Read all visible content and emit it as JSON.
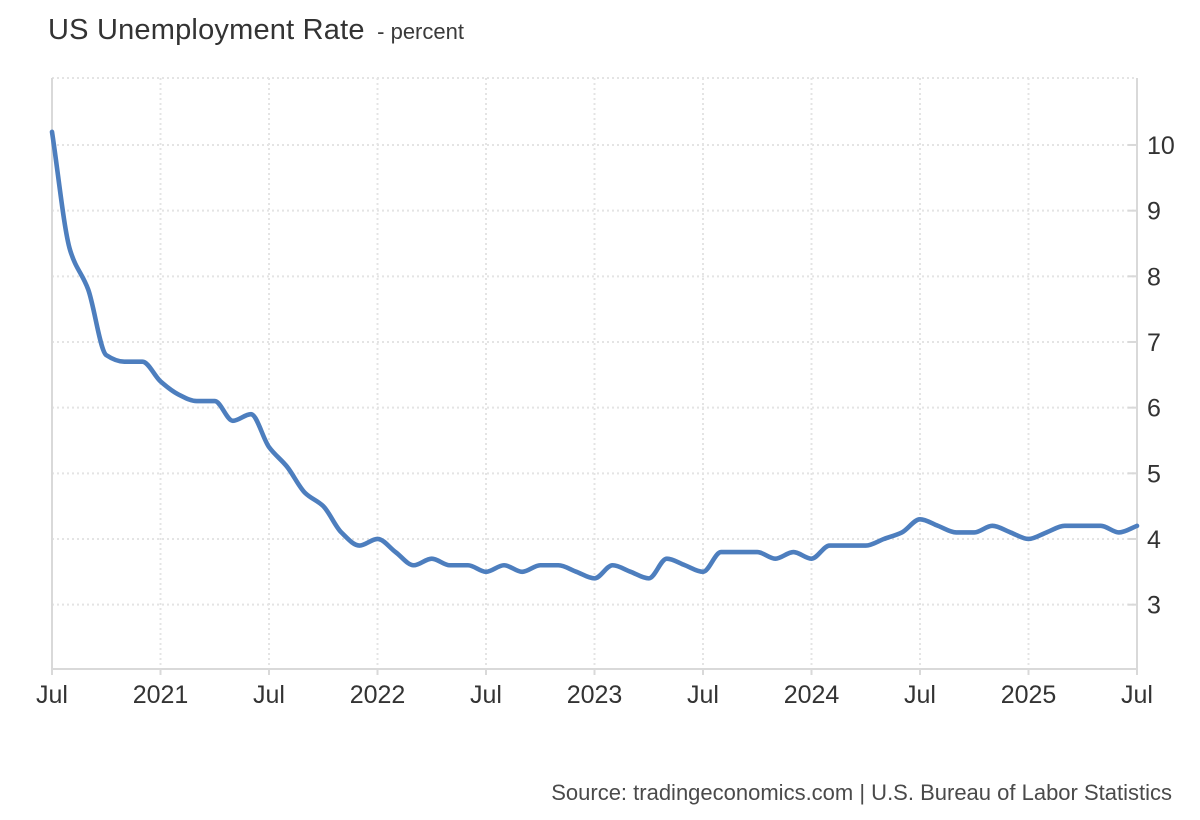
{
  "title": {
    "main": "US Unemployment Rate",
    "unit": "- percent"
  },
  "source_text": "Source: tradingeconomics.com | U.S. Bureau of Labor Statistics",
  "colors": {
    "line": "#4d7ebe",
    "grid": "#e4e4e4",
    "axis": "#d9d9d9",
    "tick_label": "#333333",
    "title_text": "#333333",
    "source_text": "#4a4a4a",
    "background": "#ffffff"
  },
  "chart_data": {
    "type": "line",
    "style": "smooth-spline",
    "title": "US Unemployment Rate",
    "ylabel": "percent",
    "xlabel": "",
    "grid": "dotted",
    "legend": "none",
    "y_axis_side": "right",
    "y_ticks": [
      3,
      4,
      5,
      6,
      7,
      8,
      9,
      10
    ],
    "ylim": [
      2.02,
      11.02
    ],
    "x_tick_month_indices": [
      0,
      6,
      12,
      18,
      24,
      30,
      36,
      42,
      48,
      54,
      60
    ],
    "x_tick_labels": [
      "Jul",
      "2021",
      "Jul",
      "2022",
      "Jul",
      "2023",
      "Jul",
      "2024",
      "Jul",
      "2025",
      "Jul"
    ],
    "months": [
      "2020-07",
      "2020-08",
      "2020-09",
      "2020-10",
      "2020-11",
      "2020-12",
      "2021-01",
      "2021-02",
      "2021-03",
      "2021-04",
      "2021-05",
      "2021-06",
      "2021-07",
      "2021-08",
      "2021-09",
      "2021-10",
      "2021-11",
      "2021-12",
      "2022-01",
      "2022-02",
      "2022-03",
      "2022-04",
      "2022-05",
      "2022-06",
      "2022-07",
      "2022-08",
      "2022-09",
      "2022-10",
      "2022-11",
      "2022-12",
      "2023-01",
      "2023-02",
      "2023-03",
      "2023-04",
      "2023-05",
      "2023-06",
      "2023-07",
      "2023-08",
      "2023-09",
      "2023-10",
      "2023-11",
      "2023-12",
      "2024-01",
      "2024-02",
      "2024-03",
      "2024-04",
      "2024-05",
      "2024-06",
      "2024-07",
      "2024-08",
      "2024-09",
      "2024-10",
      "2024-11",
      "2024-12",
      "2025-01",
      "2025-02",
      "2025-03",
      "2025-04",
      "2025-05",
      "2025-06",
      "2025-07"
    ],
    "values": [
      10.2,
      8.4,
      7.8,
      6.8,
      6.7,
      6.7,
      6.4,
      6.2,
      6.1,
      6.1,
      5.8,
      5.9,
      5.4,
      5.1,
      4.7,
      4.5,
      4.1,
      3.9,
      4.0,
      3.8,
      3.6,
      3.7,
      3.6,
      3.6,
      3.5,
      3.6,
      3.5,
      3.6,
      3.6,
      3.5,
      3.4,
      3.6,
      3.5,
      3.4,
      3.7,
      3.6,
      3.5,
      3.8,
      3.8,
      3.8,
      3.7,
      3.8,
      3.7,
      3.9,
      3.9,
      3.9,
      4.0,
      4.1,
      4.3,
      4.2,
      4.1,
      4.1,
      4.2,
      4.1,
      4.0,
      4.1,
      4.2,
      4.2,
      4.2,
      4.1,
      4.2
    ]
  }
}
